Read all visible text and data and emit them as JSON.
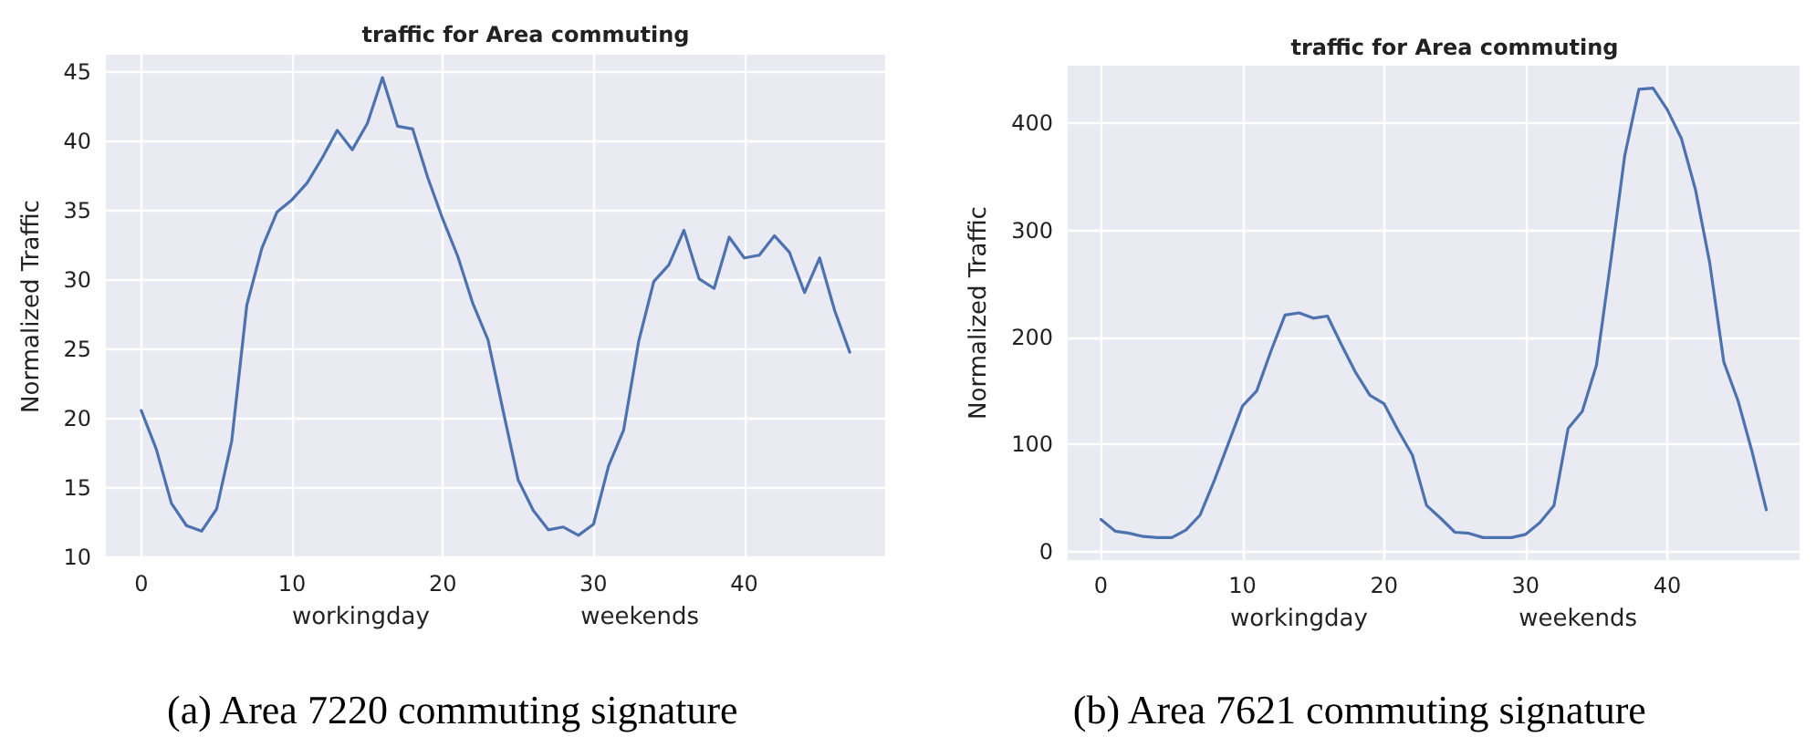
{
  "chart_data": [
    {
      "type": "line",
      "title": "traffic for Area commuting",
      "xlabel": "workingday                    weekends",
      "ylabel": "Normalized Traffic",
      "annotations": [
        "(a) Area 7220 commuting signature"
      ],
      "x": [
        0,
        1,
        2,
        3,
        4,
        5,
        6,
        7,
        8,
        9,
        10,
        11,
        12,
        13,
        14,
        15,
        16,
        17,
        18,
        19,
        20,
        21,
        22,
        23,
        24,
        25,
        26,
        27,
        28,
        29,
        30,
        31,
        32,
        33,
        34,
        35,
        36,
        37,
        38,
        39,
        40,
        41,
        42,
        43,
        44,
        45,
        46,
        47
      ],
      "series": [
        {
          "color": "#4c72b0",
          "values": [
            20.6,
            17.8,
            13.9,
            12.3,
            11.9,
            13.5,
            18.4,
            28.2,
            32.3,
            34.9,
            35.8,
            37.0,
            38.8,
            40.8,
            39.4,
            41.3,
            44.6,
            41.1,
            40.9,
            37.4,
            34.4,
            31.7,
            28.3,
            25.7,
            20.6,
            15.6,
            13.4,
            12.0,
            12.2,
            11.6,
            12.4,
            16.6,
            19.2,
            25.6,
            29.9,
            31.1,
            33.6,
            30.1,
            29.4,
            33.1,
            31.6,
            31.8,
            33.2,
            32.0,
            29.1,
            31.6,
            27.8,
            24.8
          ]
        }
      ],
      "xlim": [
        -2.35,
        49.35
      ],
      "xticks": [
        0,
        10,
        20,
        30,
        40
      ],
      "ylim": [
        9.95,
        46.25
      ],
      "yticks": [
        10,
        15,
        20,
        25,
        30,
        35,
        40,
        45
      ],
      "grid": true,
      "marker": "none",
      "line_style": "solid"
    },
    {
      "type": "line",
      "title": "traffic for Area commuting",
      "xlabel": "workingday                    weekends",
      "ylabel": "Normalized Traffic",
      "annotations": [
        "(b) Area 7621 commuting signature"
      ],
      "x": [
        0,
        1,
        2,
        3,
        4,
        5,
        6,
        7,
        8,
        9,
        10,
        11,
        12,
        13,
        14,
        15,
        16,
        17,
        18,
        19,
        20,
        21,
        22,
        23,
        24,
        25,
        26,
        27,
        28,
        29,
        30,
        31,
        32,
        33,
        34,
        35,
        36,
        37,
        38,
        39,
        40,
        41,
        42,
        43,
        44,
        45,
        46,
        47
      ],
      "series": [
        {
          "color": "#4c72b0",
          "values": [
            30,
            19,
            17,
            14,
            13,
            13,
            20,
            34,
            66,
            101,
            136,
            150,
            187,
            221,
            223,
            218,
            220,
            193,
            167,
            146,
            138,
            113,
            90,
            43,
            31,
            18,
            17,
            13,
            13,
            13,
            16,
            27,
            43,
            115,
            131,
            174,
            270,
            370,
            432,
            433,
            413,
            386,
            338,
            270,
            177,
            141,
            93,
            39
          ]
        }
      ],
      "xlim": [
        -2.35,
        49.35
      ],
      "xticks": [
        0,
        10,
        20,
        30,
        40
      ],
      "ylim": [
        -8,
        454
      ],
      "yticks": [
        0,
        100,
        200,
        300,
        400
      ],
      "grid": true,
      "marker": "none",
      "line_style": "solid"
    }
  ]
}
